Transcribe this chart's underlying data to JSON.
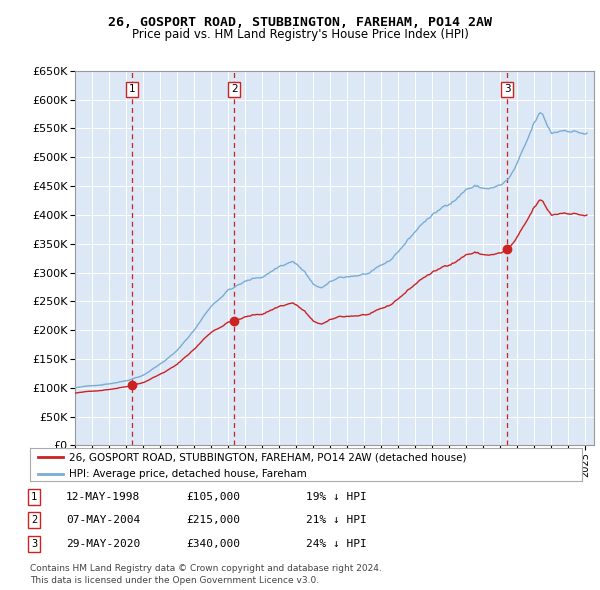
{
  "title": "26, GOSPORT ROAD, STUBBINGTON, FAREHAM, PO14 2AW",
  "subtitle": "Price paid vs. HM Land Registry's House Price Index (HPI)",
  "sale_prices": [
    105000,
    215000,
    340000
  ],
  "sale_labels": [
    "1",
    "2",
    "3"
  ],
  "sale_years": [
    1998.37,
    2004.35,
    2020.41
  ],
  "legend_line1": "26, GOSPORT ROAD, STUBBINGTON, FAREHAM, PO14 2AW (detached house)",
  "legend_line2": "HPI: Average price, detached house, Fareham",
  "table_entries": [
    {
      "num": "1",
      "date": "12-MAY-1998",
      "price": "£105,000",
      "pct": "19% ↓ HPI"
    },
    {
      "num": "2",
      "date": "07-MAY-2004",
      "price": "£215,000",
      "pct": "21% ↓ HPI"
    },
    {
      "num": "3",
      "date": "29-MAY-2020",
      "price": "£340,000",
      "pct": "24% ↓ HPI"
    }
  ],
  "footer": "Contains HM Land Registry data © Crown copyright and database right 2024.\nThis data is licensed under the Open Government Licence v3.0.",
  "hpi_color": "#7aadd4",
  "sale_line_color": "#cc2222",
  "vline_color": "#cc2222",
  "background_color": "#dce8f5",
  "ylim": [
    0,
    650000
  ],
  "xlim_start": 1995.0,
  "xlim_end": 2025.5
}
